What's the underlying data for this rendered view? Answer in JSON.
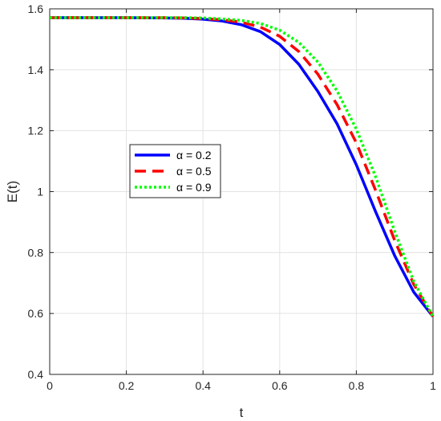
{
  "chart_data": {
    "type": "line",
    "xlabel": "t",
    "ylabel": "E(t)",
    "xlim": [
      0,
      1
    ],
    "ylim": [
      0.4,
      1.6
    ],
    "xticks": [
      0,
      0.2,
      0.4,
      0.6,
      0.8,
      1
    ],
    "xtick_labels": [
      "0",
      "0.2",
      "0.4",
      "0.6",
      "0.8",
      "1"
    ],
    "yticks": [
      0.4,
      0.6,
      0.8,
      1.0,
      1.2,
      1.4,
      1.6
    ],
    "ytick_labels": [
      "0.4",
      "0.6",
      "0.8",
      "1",
      "1.2",
      "1.4",
      "1.6"
    ],
    "grid": true,
    "legend_position": "middle-left",
    "series": [
      {
        "name": "α = 0.2",
        "color": "#0000ff",
        "style": "solid",
        "x": [
          0,
          0.1,
          0.2,
          0.3,
          0.35,
          0.4,
          0.45,
          0.5,
          0.55,
          0.6,
          0.65,
          0.7,
          0.75,
          0.8,
          0.85,
          0.9,
          0.95,
          1.0
        ],
        "y": [
          1.571,
          1.571,
          1.571,
          1.57,
          1.569,
          1.566,
          1.56,
          1.548,
          1.525,
          1.483,
          1.418,
          1.328,
          1.222,
          1.088,
          0.935,
          0.79,
          0.67,
          0.59
        ]
      },
      {
        "name": "α = 0.5",
        "color": "#ff0000",
        "style": "dashed",
        "x": [
          0,
          0.1,
          0.2,
          0.3,
          0.35,
          0.4,
          0.45,
          0.5,
          0.55,
          0.6,
          0.65,
          0.7,
          0.75,
          0.8,
          0.85,
          0.9,
          0.95,
          1.0
        ],
        "y": [
          1.571,
          1.571,
          1.571,
          1.571,
          1.57,
          1.568,
          1.564,
          1.556,
          1.54,
          1.51,
          1.46,
          1.385,
          1.285,
          1.16,
          1.005,
          0.84,
          0.695,
          0.59
        ]
      },
      {
        "name": "α = 0.9",
        "color": "#00ff00",
        "style": "dotted",
        "x": [
          0,
          0.1,
          0.2,
          0.3,
          0.35,
          0.4,
          0.45,
          0.5,
          0.55,
          0.6,
          0.65,
          0.7,
          0.75,
          0.8,
          0.85,
          0.9,
          0.95,
          1.0
        ],
        "y": [
          1.571,
          1.571,
          1.571,
          1.571,
          1.571,
          1.57,
          1.567,
          1.562,
          1.552,
          1.53,
          1.49,
          1.425,
          1.33,
          1.205,
          1.05,
          0.87,
          0.705,
          0.59
        ]
      }
    ]
  }
}
